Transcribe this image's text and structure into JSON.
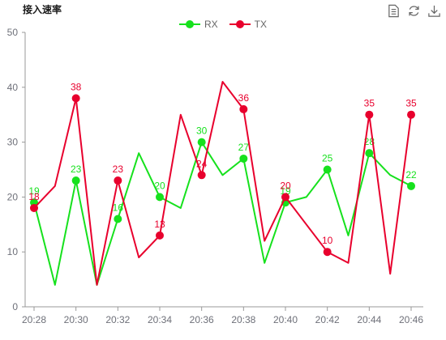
{
  "title": "接入速率",
  "colors": {
    "rx": "#16e11d",
    "tx": "#e8002d",
    "axis": "#999999",
    "tick_text": "#6e7079"
  },
  "toolbox": [
    "data-view-icon",
    "refresh-icon",
    "download-icon"
  ],
  "chart_data": {
    "type": "line",
    "title": "接入速率",
    "xlabel": "",
    "ylabel": "",
    "ylim": [
      0,
      50
    ],
    "yticks": [
      0,
      10,
      20,
      30,
      40,
      50
    ],
    "x": [
      "20:28",
      "20:29",
      "20:30",
      "20:31",
      "20:32",
      "20:33",
      "20:34",
      "20:35",
      "20:36",
      "20:37",
      "20:38",
      "20:39",
      "20:40",
      "20:41",
      "20:42",
      "20:43",
      "20:44",
      "20:45",
      "20:46"
    ],
    "x_tick_labels": [
      "20:28",
      "20:30",
      "20:32",
      "20:34",
      "20:36",
      "20:38",
      "20:40",
      "20:42",
      "20:44",
      "20:46"
    ],
    "legend_position": "top-center",
    "grid": false,
    "series": [
      {
        "name": "RX",
        "color": "#16e11d",
        "values": [
          19,
          4,
          23,
          4,
          16,
          28,
          20,
          18,
          30,
          24,
          27,
          8,
          19,
          20,
          25,
          13,
          28,
          24,
          22
        ],
        "labeled": [
          0,
          2,
          4,
          6,
          8,
          10,
          12,
          14,
          16,
          18
        ]
      },
      {
        "name": "TX",
        "color": "#e8002d",
        "values": [
          18,
          22,
          38,
          4,
          23,
          9,
          13,
          35,
          24,
          41,
          36,
          12,
          20,
          15,
          10,
          8,
          35,
          6,
          35
        ],
        "labeled": [
          0,
          2,
          4,
          6,
          8,
          10,
          12,
          14,
          16,
          18
        ]
      }
    ]
  }
}
